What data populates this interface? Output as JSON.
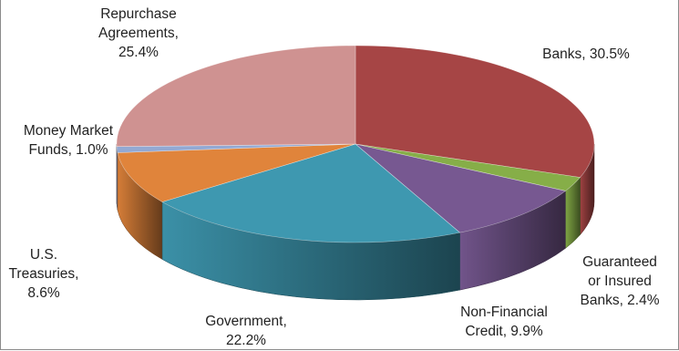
{
  "chart_data": {
    "type": "pie",
    "style": "3d-exploded-perspective",
    "title": "",
    "slices": [
      {
        "name": "Banks",
        "value": 30.5,
        "label_lines": [
          "Banks, 30.5%"
        ],
        "color": "#A64545"
      },
      {
        "name": "Guaranteed or Insured Banks",
        "value": 2.4,
        "label_lines": [
          "Guaranteed",
          "or Insured",
          "Banks, 2.4%"
        ],
        "color": "#86AE48"
      },
      {
        "name": "Non-Financial Credit",
        "value": 9.9,
        "label_lines": [
          "Non-Financial",
          "Credit, 9.9%"
        ],
        "color": "#775891"
      },
      {
        "name": "Government",
        "value": 22.2,
        "label_lines": [
          "Government,",
          "22.2%"
        ],
        "color": "#3E98B0"
      },
      {
        "name": "U.S. Treasuries",
        "value": 8.6,
        "label_lines": [
          "U.S.",
          "Treasuries,",
          "8.6%"
        ],
        "color": "#E0843B"
      },
      {
        "name": "Money Market Funds",
        "value": 1.0,
        "label_lines": [
          "Money Market",
          "Funds, 1.0%"
        ],
        "color": "#93A9D3"
      },
      {
        "name": "Repurchase Agreements",
        "value": 25.4,
        "label_lines": [
          "Repurchase",
          "Agreements,",
          "25.4%"
        ],
        "color": "#CF9291"
      }
    ],
    "legend": "none"
  }
}
